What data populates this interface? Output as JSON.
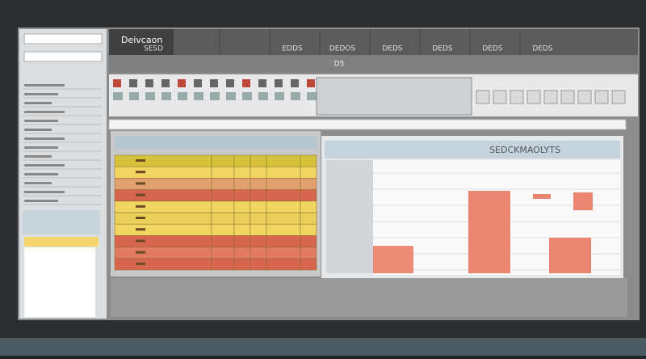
{
  "app": {
    "title": "Deivcaon",
    "tabs": [
      "SESD",
      "EDDS",
      "DEDOS",
      "DEDS",
      "DEDS",
      "DEDS",
      "DEDS"
    ],
    "sheet_header": "D5",
    "panel_title": "SEDCKMAOLYTS"
  }
}
